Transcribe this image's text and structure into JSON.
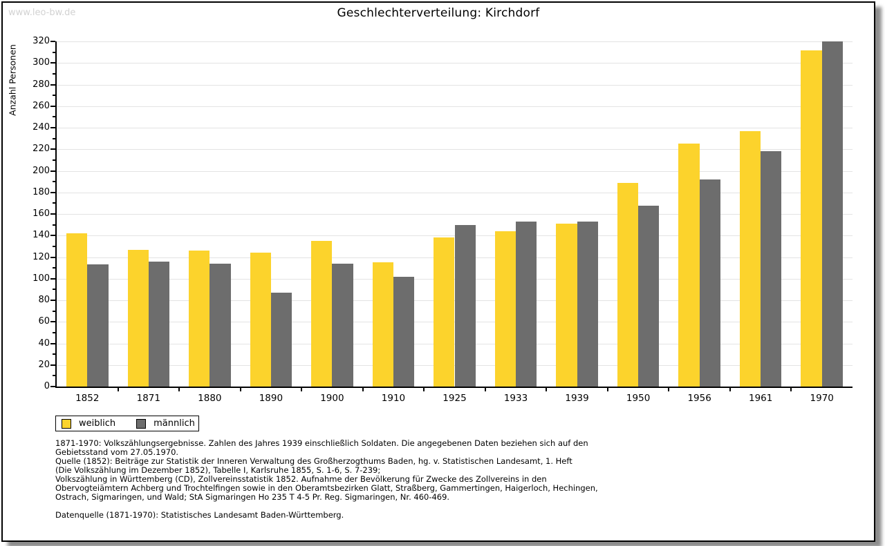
{
  "watermark": "www.leo-bw.de",
  "chart_data": {
    "type": "bar",
    "title": "Geschlechterverteilung: Kirchdorf",
    "ylabel": "Anzahl Personen",
    "xlabel": "",
    "ylim": [
      0,
      320
    ],
    "ytick_major_step": 20,
    "ytick_minor_step": 10,
    "grid": "horizontal-light",
    "legend_position": "bottom-left",
    "categories": [
      "1852",
      "1871",
      "1880",
      "1890",
      "1900",
      "1910",
      "1925",
      "1933",
      "1939",
      "1950",
      "1956",
      "1961",
      "1970"
    ],
    "series": [
      {
        "name": "weiblich",
        "color": "#fcd32c",
        "values": [
          142,
          127,
          126,
          124,
          135,
          115,
          138,
          144,
          151,
          189,
          225,
          237,
          312
        ]
      },
      {
        "name": "männlich",
        "color": "#6d6d6d",
        "values": [
          113,
          116,
          114,
          87,
          114,
          102,
          150,
          153,
          153,
          168,
          192,
          218,
          320
        ]
      }
    ]
  },
  "colors": {
    "weiblich": "#fcd32c",
    "maennlich": "#6d6d6d",
    "gridline": "#e3e3e3",
    "axis": "#000000",
    "watermark": "#d2d2d2"
  },
  "footnotes": [
    "1871-1970: Volkszählungsergebnisse. Zahlen des Jahres 1939 einschließlich Soldaten. Die angegebenen Daten beziehen sich auf den",
    "Gebietsstand vom 27.05.1970.",
    "Quelle (1852): Beiträge zur Statistik der Inneren Verwaltung des Großherzogthums Baden, hg. v. Statistischen Landesamt, 1. Heft",
    "(Die Volkszählung im Dezember 1852), Tabelle I, Karlsruhe 1855, S. 1-6, S. 7-239;",
    "Volkszählung in Württemberg (CD), Zollvereinsstatistik 1852. Aufnahme der Bevölkerung für Zwecke des Zollvereins in den",
    "Obervogteiämtern Achberg und Trochtelfingen sowie in den Oberamtsbezirken Glatt, Straßberg, Gammertingen, Haigerloch, Hechingen,",
    "Ostrach, Sigmaringen, und Wald; StA Sigmaringen Ho 235 T 4-5 Pr. Reg. Sigmaringen, Nr. 460-469.",
    "",
    "Datenquelle (1871-1970): Statistisches Landesamt Baden-Württemberg."
  ]
}
